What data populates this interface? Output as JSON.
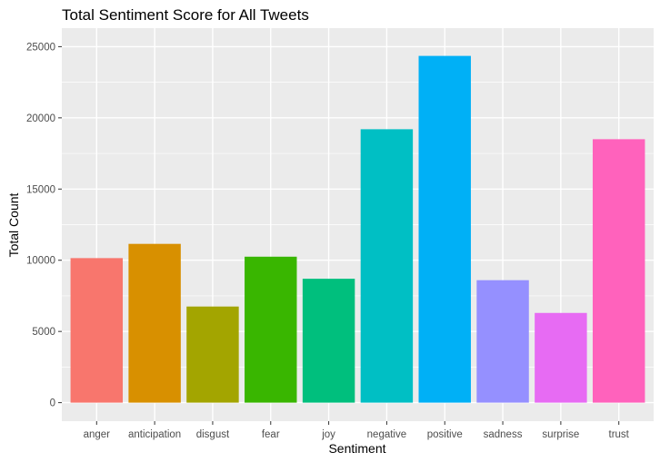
{
  "chart_data": {
    "type": "bar",
    "title": "Total Sentiment Score for All Tweets",
    "xlabel": "Sentiment",
    "ylabel": "Total Count",
    "categories": [
      "anger",
      "anticipation",
      "disgust",
      "fear",
      "joy",
      "negative",
      "positive",
      "sadness",
      "surprise",
      "trust"
    ],
    "values": [
      10150,
      11150,
      6750,
      10250,
      8700,
      19200,
      24350,
      8600,
      6300,
      18500
    ],
    "colors": [
      "#F8766D",
      "#D89000",
      "#A3A500",
      "#39B600",
      "#00BF7D",
      "#00BFC4",
      "#00B0F6",
      "#9590FF",
      "#E76BF3",
      "#FF62BC"
    ],
    "ylim": [
      -1300,
      26300
    ],
    "yticks": [
      0,
      5000,
      10000,
      15000,
      20000,
      25000
    ],
    "yticklabels": [
      "0",
      "5000",
      "10000",
      "15000",
      "20000",
      "25000"
    ],
    "grid": true,
    "legend": "none"
  }
}
